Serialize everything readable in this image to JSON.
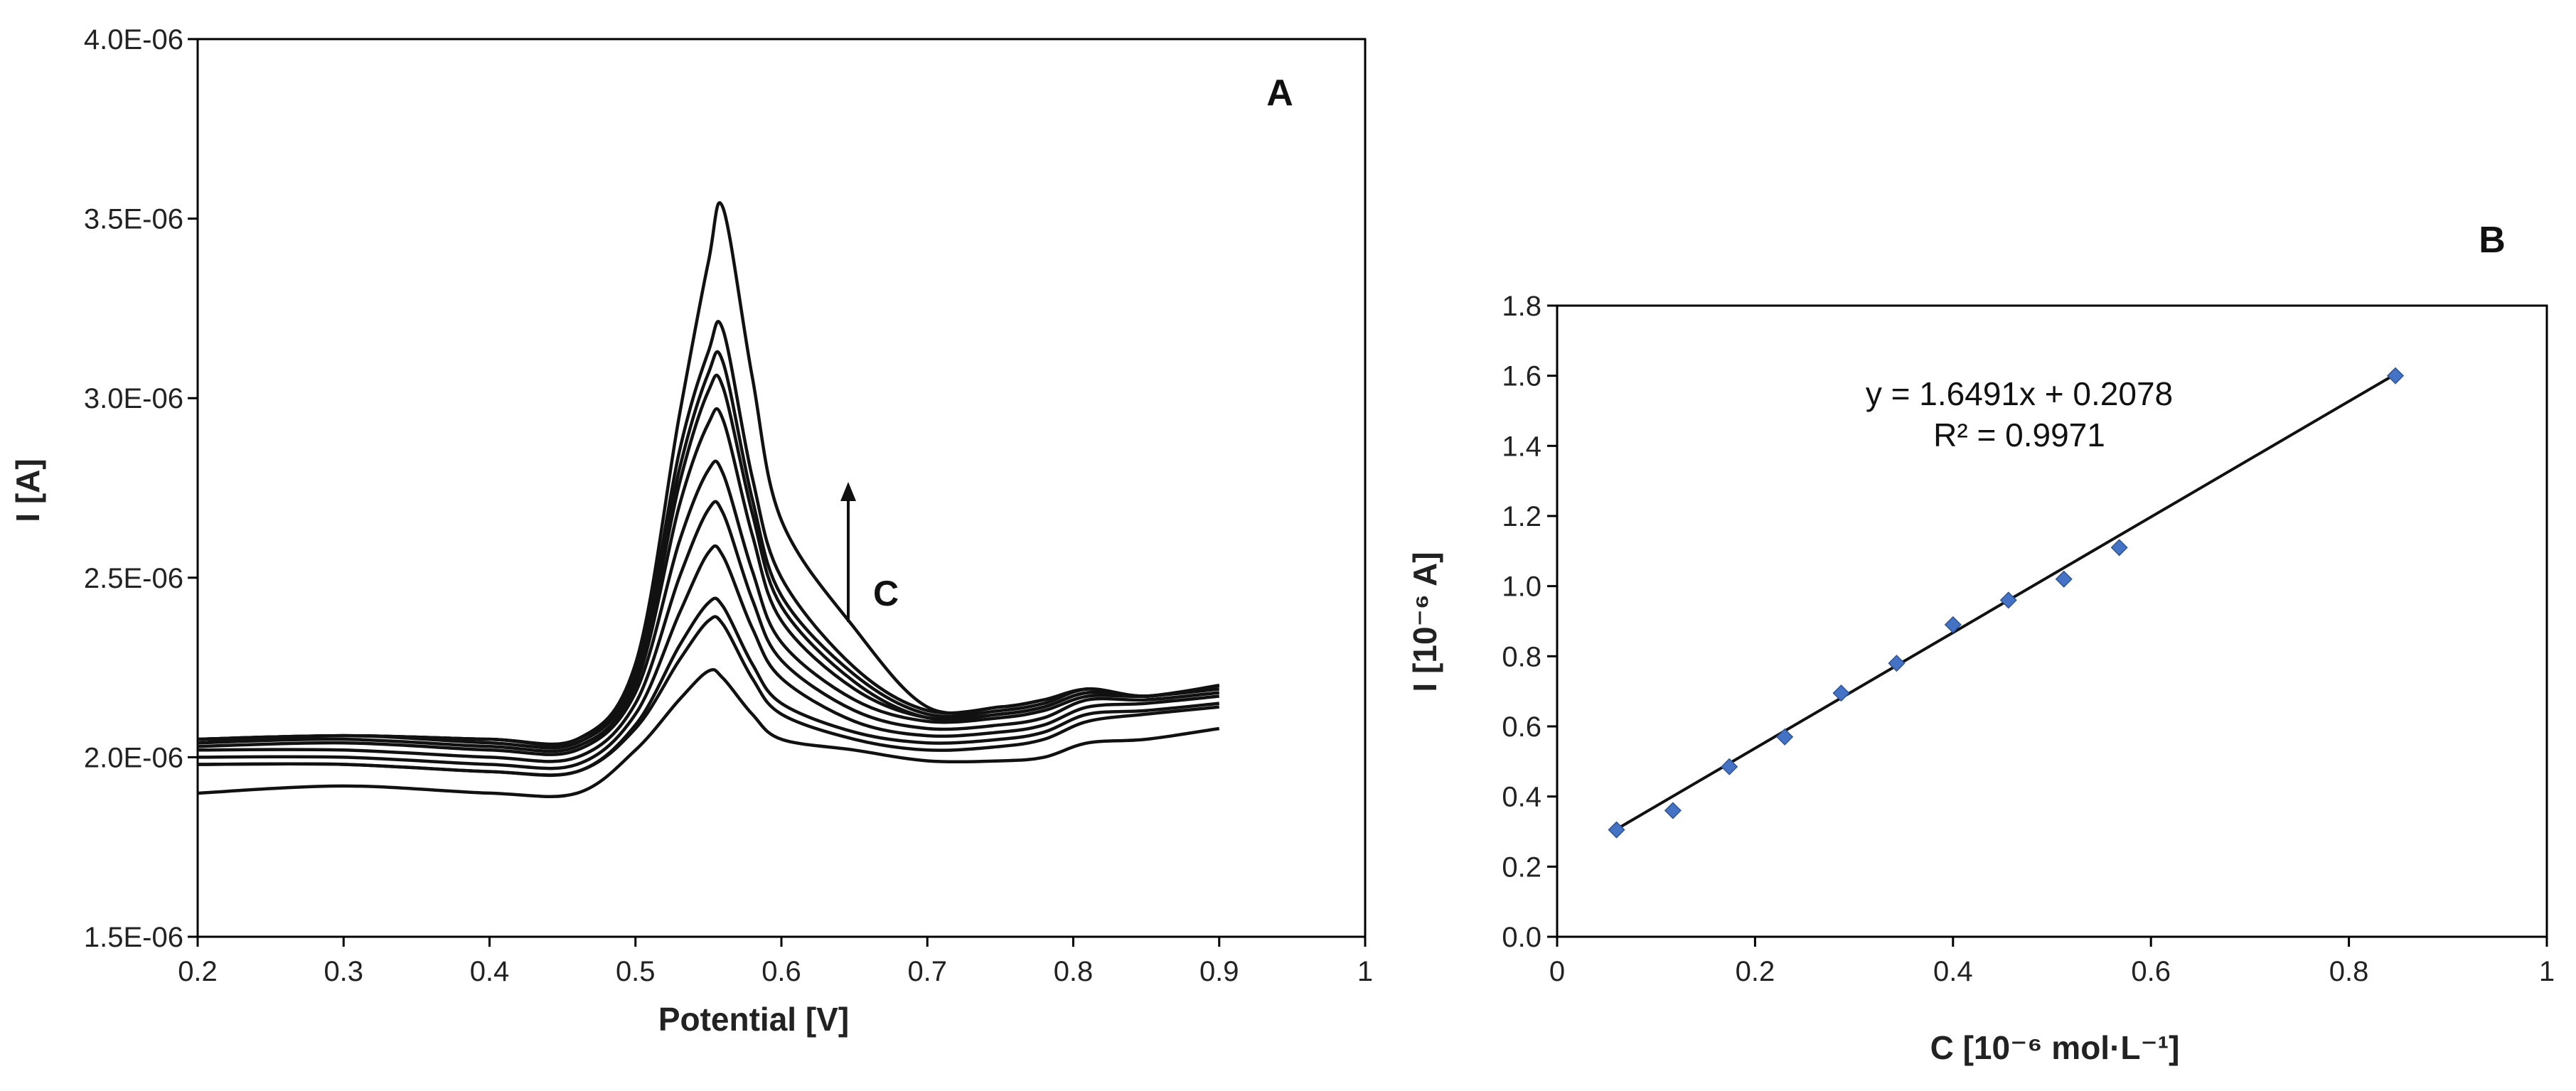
{
  "chart_data": [
    {
      "type": "line",
      "panel_label": "A",
      "title": "",
      "xlabel": "Potential [V]",
      "ylabel": "I [A]",
      "xlim": [
        0.2,
        1.0
      ],
      "ylim": [
        1.5e-06,
        4e-06
      ],
      "x_ticks": [
        "0.2",
        "0.3",
        "0.4",
        "0.5",
        "0.6",
        "0.7",
        "0.8",
        "0.9",
        "1"
      ],
      "y_ticks": [
        "1.5E-06",
        "2.0E-06",
        "2.5E-06",
        "3.0E-06",
        "3.5E-06",
        "4.0E-06"
      ],
      "arrow_label": "C",
      "x": [
        0.2,
        0.3,
        0.4,
        0.46,
        0.5,
        0.53,
        0.55,
        0.56,
        0.58,
        0.6,
        0.65,
        0.7,
        0.75,
        0.78,
        0.81,
        0.85,
        0.9
      ],
      "series": [
        {
          "name": "curve 1",
          "values": [
            1.9e-06,
            1.92e-06,
            1.9e-06,
            1.9e-06,
            2.02e-06,
            2.16e-06,
            2.24e-06,
            2.22e-06,
            2.12e-06,
            2.05e-06,
            2.02e-06,
            1.99e-06,
            1.99e-06,
            2e-06,
            2.04e-06,
            2.05e-06,
            2.08e-06
          ]
        },
        {
          "name": "curve 2",
          "values": [
            1.98e-06,
            1.98e-06,
            1.96e-06,
            1.96e-06,
            2.08e-06,
            2.27e-06,
            2.38e-06,
            2.37e-06,
            2.22e-06,
            2.12e-06,
            2.05e-06,
            2.02e-06,
            2.03e-06,
            2.05e-06,
            2.1e-06,
            2.12e-06,
            2.14e-06
          ]
        },
        {
          "name": "curve 3",
          "values": [
            1.98e-06,
            1.98e-06,
            1.96e-06,
            1.96e-06,
            2.09e-06,
            2.31e-06,
            2.43e-06,
            2.42e-06,
            2.26e-06,
            2.15e-06,
            2.07e-06,
            2.04e-06,
            2.05e-06,
            2.07e-06,
            2.12e-06,
            2.13e-06,
            2.15e-06
          ]
        },
        {
          "name": "curve 4",
          "values": [
            2e-06,
            2e-06,
            1.98e-06,
            1.98e-06,
            2.12e-06,
            2.4e-06,
            2.57e-06,
            2.56e-06,
            2.36e-06,
            2.22e-06,
            2.1e-06,
            2.06e-06,
            2.07e-06,
            2.09e-06,
            2.14e-06,
            2.15e-06,
            2.17e-06
          ]
        },
        {
          "name": "curve 5",
          "values": [
            2.02e-06,
            2.02e-06,
            2e-06,
            2e-06,
            2.15e-06,
            2.5e-06,
            2.69e-06,
            2.68e-06,
            2.44e-06,
            2.27e-06,
            2.13e-06,
            2.08e-06,
            2.09e-06,
            2.11e-06,
            2.16e-06,
            2.16e-06,
            2.18e-06
          ]
        },
        {
          "name": "curve 6",
          "values": [
            2.03e-06,
            2.04e-06,
            2.02e-06,
            2.02e-06,
            2.18e-06,
            2.6e-06,
            2.8e-06,
            2.79e-06,
            2.52e-06,
            2.32e-06,
            2.16e-06,
            2.1e-06,
            2.11e-06,
            2.13e-06,
            2.17e-06,
            2.17e-06,
            2.19e-06
          ]
        },
        {
          "name": "curve 7",
          "values": [
            2.04e-06,
            2.05e-06,
            2.03e-06,
            2.03e-06,
            2.2e-06,
            2.7e-06,
            2.93e-06,
            2.94e-06,
            2.62e-06,
            2.38e-06,
            2.19e-06,
            2.11e-06,
            2.12e-06,
            2.14e-06,
            2.18e-06,
            2.17e-06,
            2.2e-06
          ]
        },
        {
          "name": "curve 8",
          "values": [
            2.04e-06,
            2.06e-06,
            2.04e-06,
            2.04e-06,
            2.22e-06,
            2.76e-06,
            3.02e-06,
            3.03e-06,
            2.68e-06,
            2.42e-06,
            2.21e-06,
            2.11e-06,
            2.12e-06,
            2.14e-06,
            2.18e-06,
            2.17e-06,
            2.2e-06
          ]
        },
        {
          "name": "curve 9",
          "values": [
            2.05e-06,
            2.06e-06,
            2.05e-06,
            2.05e-06,
            2.23e-06,
            2.8e-06,
            3.07e-06,
            3.1e-06,
            2.72e-06,
            2.45e-06,
            2.23e-06,
            2.12e-06,
            2.13e-06,
            2.15e-06,
            2.19e-06,
            2.17e-06,
            2.2e-06
          ]
        },
        {
          "name": "curve 10",
          "values": [
            2.05e-06,
            2.06e-06,
            2.05e-06,
            2.05e-06,
            2.24e-06,
            2.85e-06,
            3.13e-06,
            3.19e-06,
            2.78e-06,
            2.5e-06,
            2.25e-06,
            2.13e-06,
            2.14e-06,
            2.16e-06,
            2.19e-06,
            2.17e-06,
            2.2e-06
          ]
        },
        {
          "name": "curve 11",
          "values": [
            2.05e-06,
            2.06e-06,
            2.05e-06,
            2.05e-06,
            2.26e-06,
            2.95e-06,
            3.38e-06,
            3.53e-06,
            3.06e-06,
            2.66e-06,
            2.36e-06,
            2.14e-06,
            2.14e-06,
            2.16e-06,
            2.19e-06,
            2.17e-06,
            2.2e-06
          ]
        }
      ]
    },
    {
      "type": "scatter",
      "panel_label": "B",
      "title": "",
      "xlabel": "C [10⁻⁶ mol·L⁻¹]",
      "ylabel": "I [10⁻⁶ A]",
      "xlim": [
        0,
        1
      ],
      "ylim": [
        0,
        1.8
      ],
      "x_ticks": [
        "0",
        "0.2",
        "0.4",
        "0.6",
        "0.8",
        "1"
      ],
      "y_ticks": [
        "0.0",
        "0.2",
        "0.4",
        "0.6",
        "0.8",
        "1.0",
        "1.2",
        "1.4",
        "1.6",
        "1.8"
      ],
      "series": [
        {
          "name": "data",
          "color": "#4472C4",
          "x": [
            0.06,
            0.117,
            0.174,
            0.23,
            0.287,
            0.343,
            0.4,
            0.456,
            0.512,
            0.568,
            0.847
          ],
          "y": [
            0.305,
            0.36,
            0.485,
            0.57,
            0.695,
            0.78,
            0.89,
            0.96,
            1.02,
            1.11,
            1.6
          ]
        }
      ],
      "trendline": {
        "slope": 1.6491,
        "intercept": 0.2078,
        "x_range": [
          0.055,
          0.85
        ],
        "color": "#111111"
      },
      "equation_label": "y = 1.6491x + 0.2078",
      "r2_label": "R² = 0.9971"
    }
  ]
}
